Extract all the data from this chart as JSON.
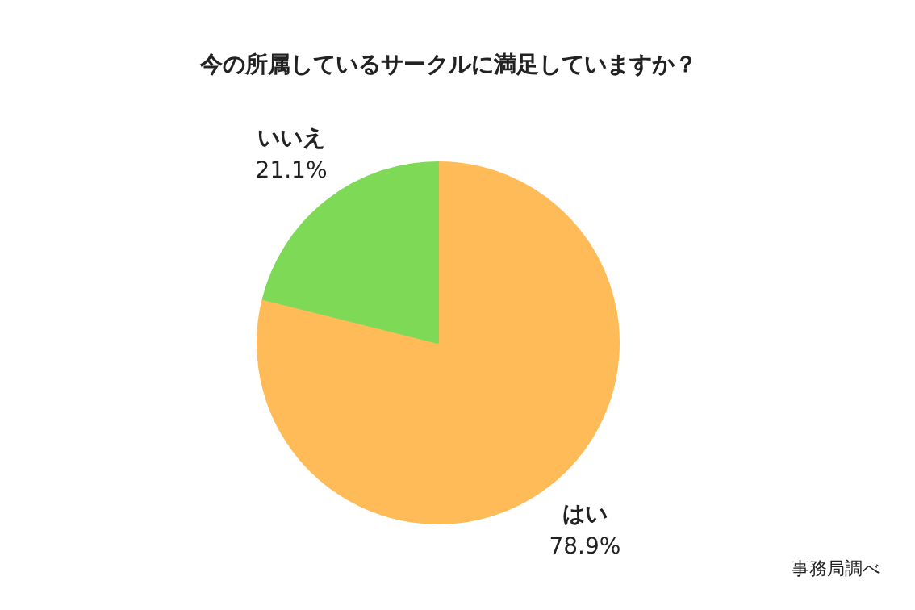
{
  "chart_data": {
    "type": "pie",
    "title": "今の所属しているサークルに満足していますか？",
    "categories": [
      "はい",
      "いいえ"
    ],
    "values": [
      78.9,
      21.1
    ],
    "colors": [
      "#ffbb57",
      "#7ed957"
    ],
    "value_labels": [
      "78.9%",
      "21.1%"
    ],
    "annotations": [
      "事務局調べ"
    ],
    "legend": false
  }
}
